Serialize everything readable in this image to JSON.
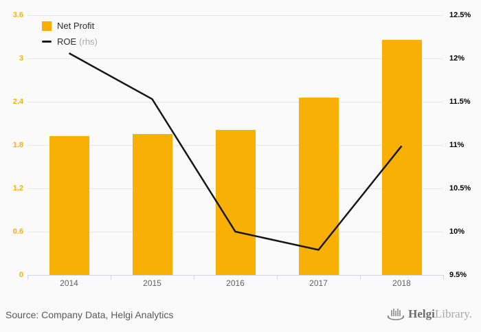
{
  "colors": {
    "background": "#fafafa",
    "bar": "#f9b005",
    "line": "#161616",
    "grid": "#e6e6e6",
    "axis": "#ccd6eb",
    "left_tick_color": "#f9b005",
    "right_tick_color": "#000000",
    "xlabel_color": "#606060"
  },
  "legend": {
    "net_profit_label": "Net Profit",
    "roe_label": "ROE",
    "roe_suffix": "(rhs)"
  },
  "chart_data": {
    "type": "bar",
    "subtype": "bar+line dual-axis",
    "categories": [
      "2014",
      "2015",
      "2016",
      "2017",
      "2018"
    ],
    "series": [
      {
        "name": "Net Profit",
        "type": "bar",
        "axis": "left",
        "values": [
          1.92,
          1.95,
          2.01,
          2.46,
          3.26
        ]
      },
      {
        "name": "ROE",
        "type": "line",
        "axis": "right",
        "values": [
          12.06,
          11.53,
          10.0,
          9.79,
          10.99
        ]
      }
    ],
    "title": "",
    "xlabel": "",
    "ylabel": "",
    "left_axis": {
      "min": 0,
      "max": 3.6,
      "step": 0.6,
      "ticks": [
        "0",
        "0.6",
        "1.2",
        "1.8",
        "2.4",
        "3",
        "3.6"
      ]
    },
    "right_axis": {
      "min": 9.5,
      "max": 12.5,
      "step": 0.5,
      "ticks": [
        "9.5%",
        "10%",
        "10.5%",
        "11%",
        "11.5%",
        "12%",
        "12.5%"
      ]
    },
    "grid": true,
    "legend_position": "top-left"
  },
  "footer": {
    "source": "Source: Company Data, Helgi Analytics",
    "logo_helgi": "Helgi",
    "logo_library": "Library."
  }
}
